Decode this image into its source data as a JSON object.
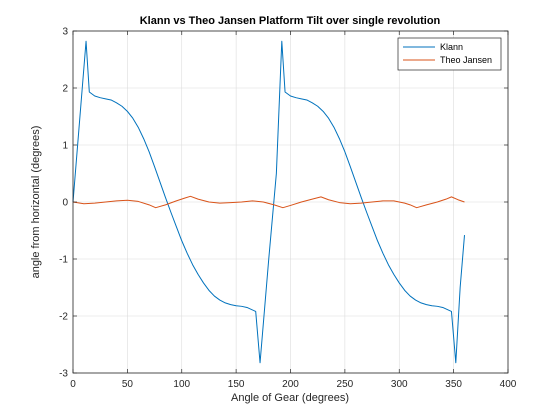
{
  "chart_data": {
    "type": "line",
    "title": "Klann vs Theo Jansen Platform Tilt over single revolution",
    "xlabel": "Angle of Gear (degrees)",
    "ylabel": "angle from horizontal (degrees)",
    "xlim": [
      0,
      400
    ],
    "ylim": [
      -3,
      3
    ],
    "xticks": [
      0,
      50,
      100,
      150,
      200,
      250,
      300,
      350,
      400
    ],
    "yticks": [
      -3,
      -2,
      -1,
      0,
      1,
      2,
      3
    ],
    "grid": true,
    "legend_position": "top-right",
    "series": [
      {
        "name": "Klann",
        "color": "#0072BD",
        "points": [
          [
            0,
            0.0
          ],
          [
            12,
            2.82
          ],
          [
            15,
            1.93
          ],
          [
            20,
            1.86
          ],
          [
            25,
            1.83
          ],
          [
            30,
            1.81
          ],
          [
            35,
            1.79
          ],
          [
            40,
            1.74
          ],
          [
            45,
            1.68
          ],
          [
            50,
            1.59
          ],
          [
            55,
            1.47
          ],
          [
            60,
            1.31
          ],
          [
            65,
            1.11
          ],
          [
            70,
            0.88
          ],
          [
            75,
            0.62
          ],
          [
            80,
            0.35
          ],
          [
            85,
            0.08
          ],
          [
            90,
            -0.18
          ],
          [
            95,
            -0.43
          ],
          [
            100,
            -0.68
          ],
          [
            105,
            -0.9
          ],
          [
            110,
            -1.1
          ],
          [
            115,
            -1.27
          ],
          [
            120,
            -1.42
          ],
          [
            125,
            -1.55
          ],
          [
            130,
            -1.65
          ],
          [
            135,
            -1.72
          ],
          [
            140,
            -1.77
          ],
          [
            145,
            -1.8
          ],
          [
            150,
            -1.82
          ],
          [
            155,
            -1.83
          ],
          [
            160,
            -1.85
          ],
          [
            168,
            -1.92
          ],
          [
            172,
            -2.82
          ],
          [
            180,
            -1.0
          ],
          [
            187,
            0.5
          ],
          [
            192,
            2.82
          ],
          [
            195,
            1.93
          ],
          [
            200,
            1.86
          ],
          [
            205,
            1.83
          ],
          [
            210,
            1.81
          ],
          [
            215,
            1.79
          ],
          [
            220,
            1.74
          ],
          [
            225,
            1.68
          ],
          [
            230,
            1.59
          ],
          [
            235,
            1.47
          ],
          [
            240,
            1.31
          ],
          [
            245,
            1.11
          ],
          [
            250,
            0.88
          ],
          [
            255,
            0.62
          ],
          [
            260,
            0.35
          ],
          [
            265,
            0.08
          ],
          [
            270,
            -0.18
          ],
          [
            275,
            -0.43
          ],
          [
            280,
            -0.68
          ],
          [
            285,
            -0.9
          ],
          [
            290,
            -1.1
          ],
          [
            295,
            -1.27
          ],
          [
            300,
            -1.42
          ],
          [
            305,
            -1.55
          ],
          [
            310,
            -1.65
          ],
          [
            315,
            -1.72
          ],
          [
            320,
            -1.77
          ],
          [
            325,
            -1.8
          ],
          [
            330,
            -1.82
          ],
          [
            335,
            -1.83
          ],
          [
            340,
            -1.85
          ],
          [
            348,
            -1.92
          ],
          [
            352,
            -2.82
          ],
          [
            356,
            -1.5
          ],
          [
            360,
            -0.58
          ]
        ]
      },
      {
        "name": "Theo Jansen",
        "color": "#D95319",
        "points": [
          [
            0,
            0.0
          ],
          [
            10,
            -0.03
          ],
          [
            20,
            -0.02
          ],
          [
            30,
            0.0
          ],
          [
            40,
            0.02
          ],
          [
            50,
            0.03
          ],
          [
            60,
            0.01
          ],
          [
            70,
            -0.05
          ],
          [
            76,
            -0.1
          ],
          [
            85,
            -0.05
          ],
          [
            95,
            0.02
          ],
          [
            103,
            0.07
          ],
          [
            108,
            0.1
          ],
          [
            115,
            0.05
          ],
          [
            125,
            0.0
          ],
          [
            135,
            -0.02
          ],
          [
            145,
            -0.01
          ],
          [
            155,
            0.0
          ],
          [
            165,
            0.02
          ],
          [
            175,
            0.0
          ],
          [
            185,
            -0.05
          ],
          [
            193,
            -0.1
          ],
          [
            200,
            -0.06
          ],
          [
            210,
            0.0
          ],
          [
            220,
            0.05
          ],
          [
            228,
            0.09
          ],
          [
            235,
            0.04
          ],
          [
            245,
            -0.01
          ],
          [
            255,
            -0.03
          ],
          [
            265,
            -0.02
          ],
          [
            275,
            0.0
          ],
          [
            285,
            0.02
          ],
          [
            295,
            0.02
          ],
          [
            305,
            -0.02
          ],
          [
            310,
            -0.05
          ],
          [
            316,
            -0.1
          ],
          [
            325,
            -0.05
          ],
          [
            335,
            0.0
          ],
          [
            343,
            0.05
          ],
          [
            348,
            0.09
          ],
          [
            354,
            0.04
          ],
          [
            360,
            0.0
          ]
        ]
      }
    ]
  }
}
